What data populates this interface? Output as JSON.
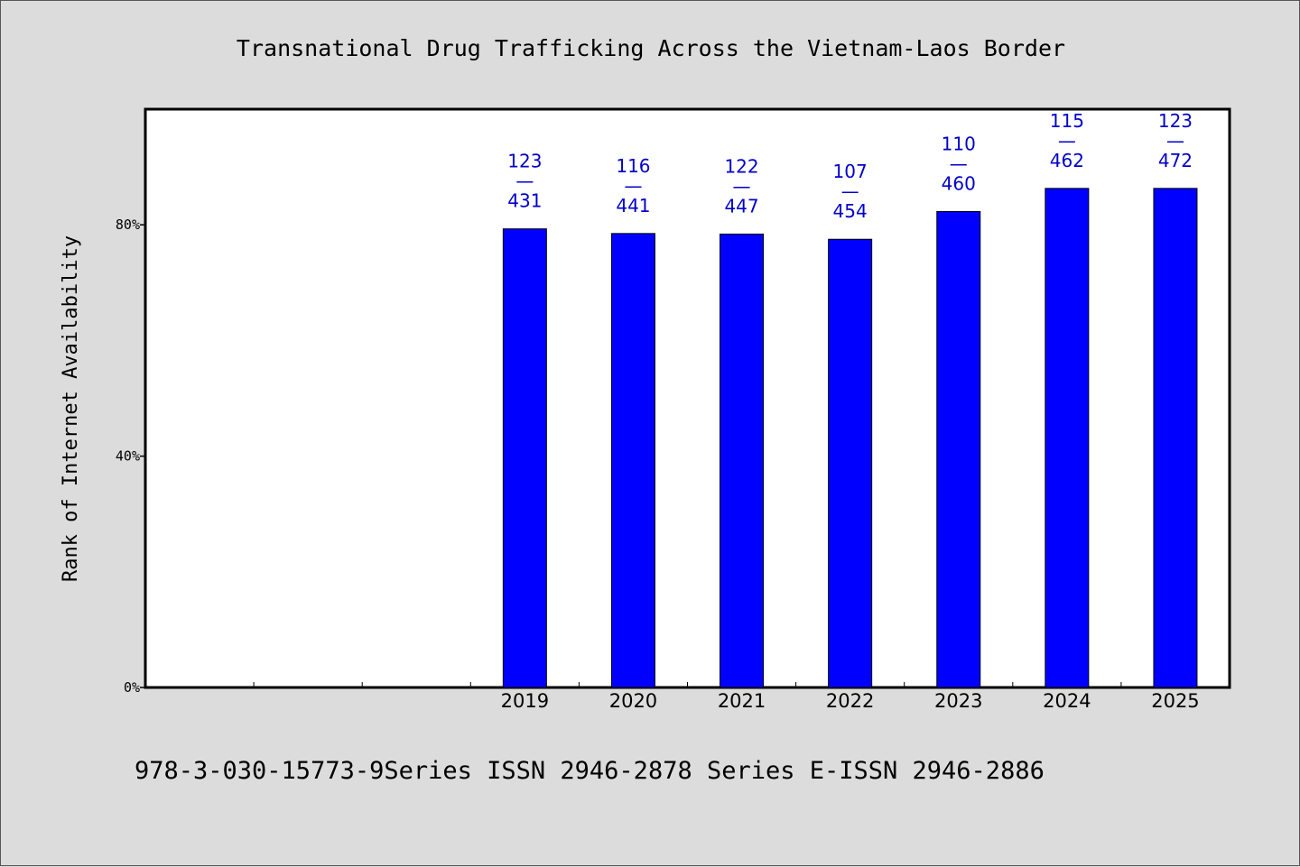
{
  "chart_data": {
    "type": "bar",
    "title": "Transnational Drug Trafficking Across the Vietnam-Laos Border",
    "xlabel": "",
    "ylabel": "Rank of Internet Availability",
    "categories": [
      "",
      "",
      "",
      "2019",
      "2020",
      "2021",
      "2022",
      "2023",
      "2024",
      "2025"
    ],
    "values": [
      null,
      null,
      null,
      79.3,
      78.5,
      78.4,
      77.5,
      82.3,
      86.3,
      86.3
    ],
    "data_labels": [
      null,
      null,
      null,
      {
        "rank": "123",
        "sep": "—",
        "total": "431"
      },
      {
        "rank": "116",
        "sep": "—",
        "total": "441"
      },
      {
        "rank": "122",
        "sep": "—",
        "total": "447"
      },
      {
        "rank": "107",
        "sep": "—",
        "total": "454"
      },
      {
        "rank": "110",
        "sep": "—",
        "total": "460"
      },
      {
        "rank": "115",
        "sep": "—",
        "total": "462"
      },
      {
        "rank": "123",
        "sep": "—",
        "total": "472"
      }
    ],
    "ylim": [
      0,
      100
    ],
    "yticks": [
      0,
      40,
      80
    ],
    "ytick_labels": [
      "0%",
      "40%",
      "80%"
    ],
    "grid": false,
    "colors": {
      "bar": "#0000ff",
      "label": "#0000cc"
    }
  },
  "footer": {
    "text": "978-3-030-15773-9Series ISSN 2946-2878 Series E-ISSN 2946-2886"
  }
}
